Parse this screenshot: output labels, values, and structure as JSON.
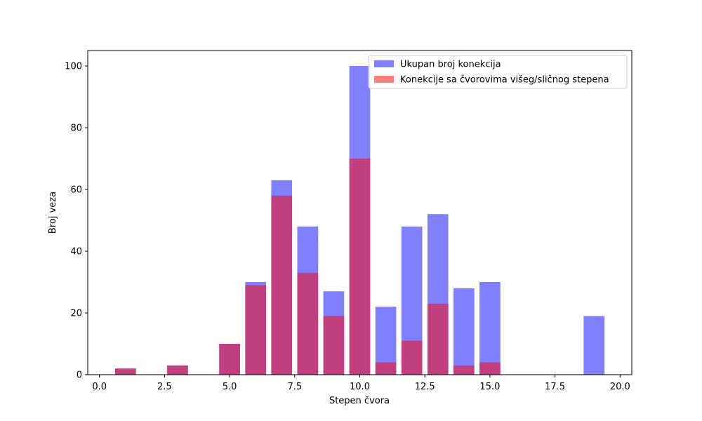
{
  "chart_data": {
    "type": "bar",
    "title": "",
    "xlabel": "Stepen čvora",
    "ylabel": "Broj veza",
    "xlim": [
      -0.45,
      20.45
    ],
    "ylim": [
      0,
      105
    ],
    "xticks": [
      0.0,
      2.5,
      5.0,
      7.5,
      10.0,
      12.5,
      15.0,
      17.5,
      20.0
    ],
    "xtick_labels": [
      "0.0",
      "2.5",
      "5.0",
      "7.5",
      "10.0",
      "12.5",
      "15.0",
      "17.5",
      "20.0"
    ],
    "yticks": [
      0,
      20,
      40,
      60,
      80,
      100
    ],
    "ytick_labels": [
      "0",
      "20",
      "40",
      "60",
      "80",
      "100"
    ],
    "bar_width": 0.8,
    "grid": false,
    "legend_position": "top-right",
    "series": [
      {
        "name": "Ukupan broj konekcija",
        "color": "#0000ff",
        "opacity": 0.5,
        "x": [
          1,
          3,
          5,
          6,
          7,
          8,
          9,
          10,
          11,
          12,
          13,
          14,
          15,
          19
        ],
        "values": [
          2,
          3,
          10,
          30,
          63,
          48,
          27,
          100,
          22,
          48,
          52,
          28,
          30,
          19
        ]
      },
      {
        "name": "Konekcije sa čvorovima višeg/sličnog stepena",
        "color": "#ff0000",
        "opacity": 0.5,
        "x": [
          1,
          3,
          5,
          6,
          7,
          8,
          9,
          10,
          11,
          12,
          13,
          14,
          15
        ],
        "values": [
          2,
          3,
          10,
          29,
          58,
          33,
          19,
          70,
          4,
          11,
          23,
          3,
          4
        ]
      }
    ]
  }
}
